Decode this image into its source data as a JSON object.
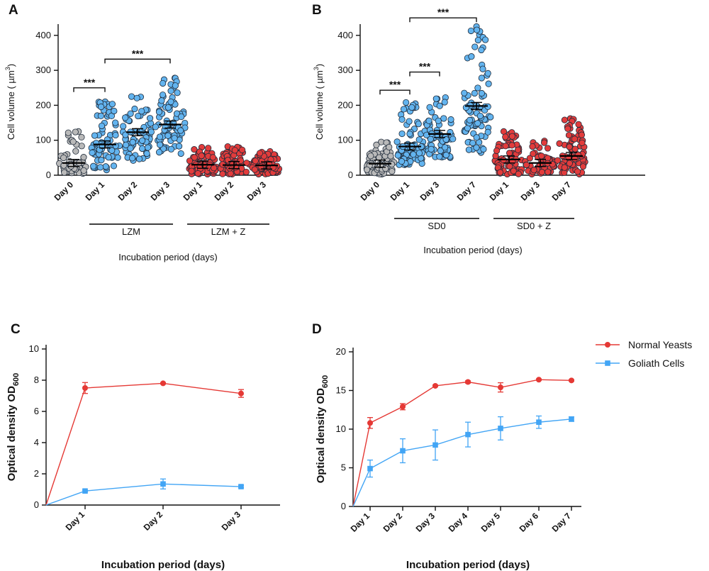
{
  "figure": {
    "panel_labels": [
      "A",
      "B",
      "C",
      "D"
    ]
  },
  "chart_data": [
    {
      "id": "A",
      "type": "scatter",
      "ylabel": "Cell volume ( µm",
      "ylabel_sup": "3",
      "ylabel_end": ")",
      "xlabel": "Incubation period (days)",
      "ylim": [
        0,
        420
      ],
      "yticks": [
        0,
        100,
        200,
        300,
        400
      ],
      "categories": [
        "Day 0",
        "Day 1",
        "Day 2",
        "Day 3",
        "Day 1",
        "Day 2",
        "Day 3"
      ],
      "colors": [
        "#b9b9b9",
        "#63b4ef",
        "#63b4ef",
        "#63b4ef",
        "#e23c3c",
        "#e23c3c",
        "#e23c3c"
      ],
      "groups": [
        {
          "label": "LZM",
          "from": 1,
          "to": 3
        },
        {
          "label": "LZM + Z",
          "from": 4,
          "to": 6
        }
      ],
      "distributions": [
        {
          "median": 35,
          "min": 5,
          "max": 125,
          "n": 55
        },
        {
          "median": 88,
          "min": 15,
          "max": 210,
          "n": 70
        },
        {
          "median": 123,
          "min": 42,
          "max": 225,
          "n": 70
        },
        {
          "median": 145,
          "min": 62,
          "max": 278,
          "n": 80
        },
        {
          "median": 30,
          "min": 3,
          "max": 80,
          "n": 70
        },
        {
          "median": 29,
          "min": 3,
          "max": 82,
          "n": 65
        },
        {
          "median": 28,
          "min": 3,
          "max": 68,
          "n": 70
        }
      ],
      "significance": [
        {
          "from": 0,
          "to": 1,
          "y": 250,
          "label": "***"
        },
        {
          "from": 1,
          "to": 3,
          "y": 332,
          "label": "***"
        }
      ]
    },
    {
      "id": "B",
      "type": "scatter",
      "ylabel": "Cell volume ( µm",
      "ylabel_sup": "3",
      "ylabel_end": ")",
      "xlabel": "Incubation period (days)",
      "ylim": [
        0,
        420
      ],
      "yticks": [
        0,
        100,
        200,
        300,
        400
      ],
      "categories": [
        "Day 0",
        "Day 1",
        "Day 3",
        "Day 7",
        "Day 1",
        "Day 3",
        "Day 7"
      ],
      "colors": [
        "#b9b9b9",
        "#63b4ef",
        "#63b4ef",
        "#63b4ef",
        "#e23c3c",
        "#e23c3c",
        "#e23c3c"
      ],
      "groups": [
        {
          "label": "SD0",
          "from": 1,
          "to": 3
        },
        {
          "label": "SD0 + Z",
          "from": 4,
          "to": 6
        }
      ],
      "distributions": [
        {
          "median": 33,
          "min": 3,
          "max": 95,
          "n": 75
        },
        {
          "median": 82,
          "min": 30,
          "max": 208,
          "n": 80
        },
        {
          "median": 118,
          "min": 50,
          "max": 222,
          "n": 70
        },
        {
          "median": 198,
          "min": 65,
          "max": 425,
          "n": 85
        },
        {
          "median": 45,
          "min": 3,
          "max": 125,
          "n": 70
        },
        {
          "median": 35,
          "min": 3,
          "max": 98,
          "n": 60
        },
        {
          "median": 55,
          "min": 3,
          "max": 162,
          "n": 80
        }
      ],
      "significance": [
        {
          "from": 0,
          "to": 1,
          "y": 243,
          "label": "***"
        },
        {
          "from": 1,
          "to": 2,
          "y": 295,
          "label": "***"
        },
        {
          "from": 1,
          "to": 3,
          "y": 450,
          "label": "***"
        }
      ]
    },
    {
      "id": "C",
      "type": "line",
      "ylabel": "Optical density OD",
      "ylabel_sub": "600",
      "xlabel": "Incubation period (days)",
      "ylim": [
        0,
        10
      ],
      "yticks": [
        0,
        2,
        4,
        6,
        8,
        10
      ],
      "categories": [
        "Day 1",
        "Day 2",
        "Day 3"
      ],
      "series": [
        {
          "name": "Normal Yeasts",
          "color": "#e53935",
          "marker": "circle",
          "values": [
            7.5,
            7.8,
            7.15
          ],
          "errors": [
            0.35,
            0.05,
            0.25
          ]
        },
        {
          "name": "Goliath Cells",
          "color": "#42a5f5",
          "marker": "square",
          "values": [
            0.9,
            1.35,
            1.18
          ],
          "errors": [
            0.05,
            0.32,
            0.07
          ]
        }
      ]
    },
    {
      "id": "D",
      "type": "line",
      "ylabel": "Optical density OD",
      "ylabel_sub": "600",
      "xlabel": "Incubation period (days)",
      "ylim": [
        0,
        20
      ],
      "yticks": [
        0,
        5,
        10,
        15,
        20
      ],
      "categories": [
        "Day 1",
        "Day 2",
        "Day 3",
        "Day 4",
        "Day 5",
        "Day 6",
        "Day 7"
      ],
      "legend_position": "right",
      "series": [
        {
          "name": "Normal Yeasts",
          "color": "#e53935",
          "marker": "circle",
          "values": [
            10.8,
            12.9,
            15.6,
            16.1,
            15.4,
            16.4,
            16.3
          ],
          "errors": [
            0.7,
            0.4,
            0.1,
            0.15,
            0.6,
            0.1,
            0.1
          ]
        },
        {
          "name": "Goliath Cells",
          "color": "#42a5f5",
          "marker": "square",
          "values": [
            4.9,
            7.2,
            7.95,
            9.3,
            10.1,
            10.9,
            11.3
          ],
          "errors": [
            1.1,
            1.55,
            1.95,
            1.6,
            1.5,
            0.8,
            0.3
          ]
        }
      ]
    }
  ]
}
